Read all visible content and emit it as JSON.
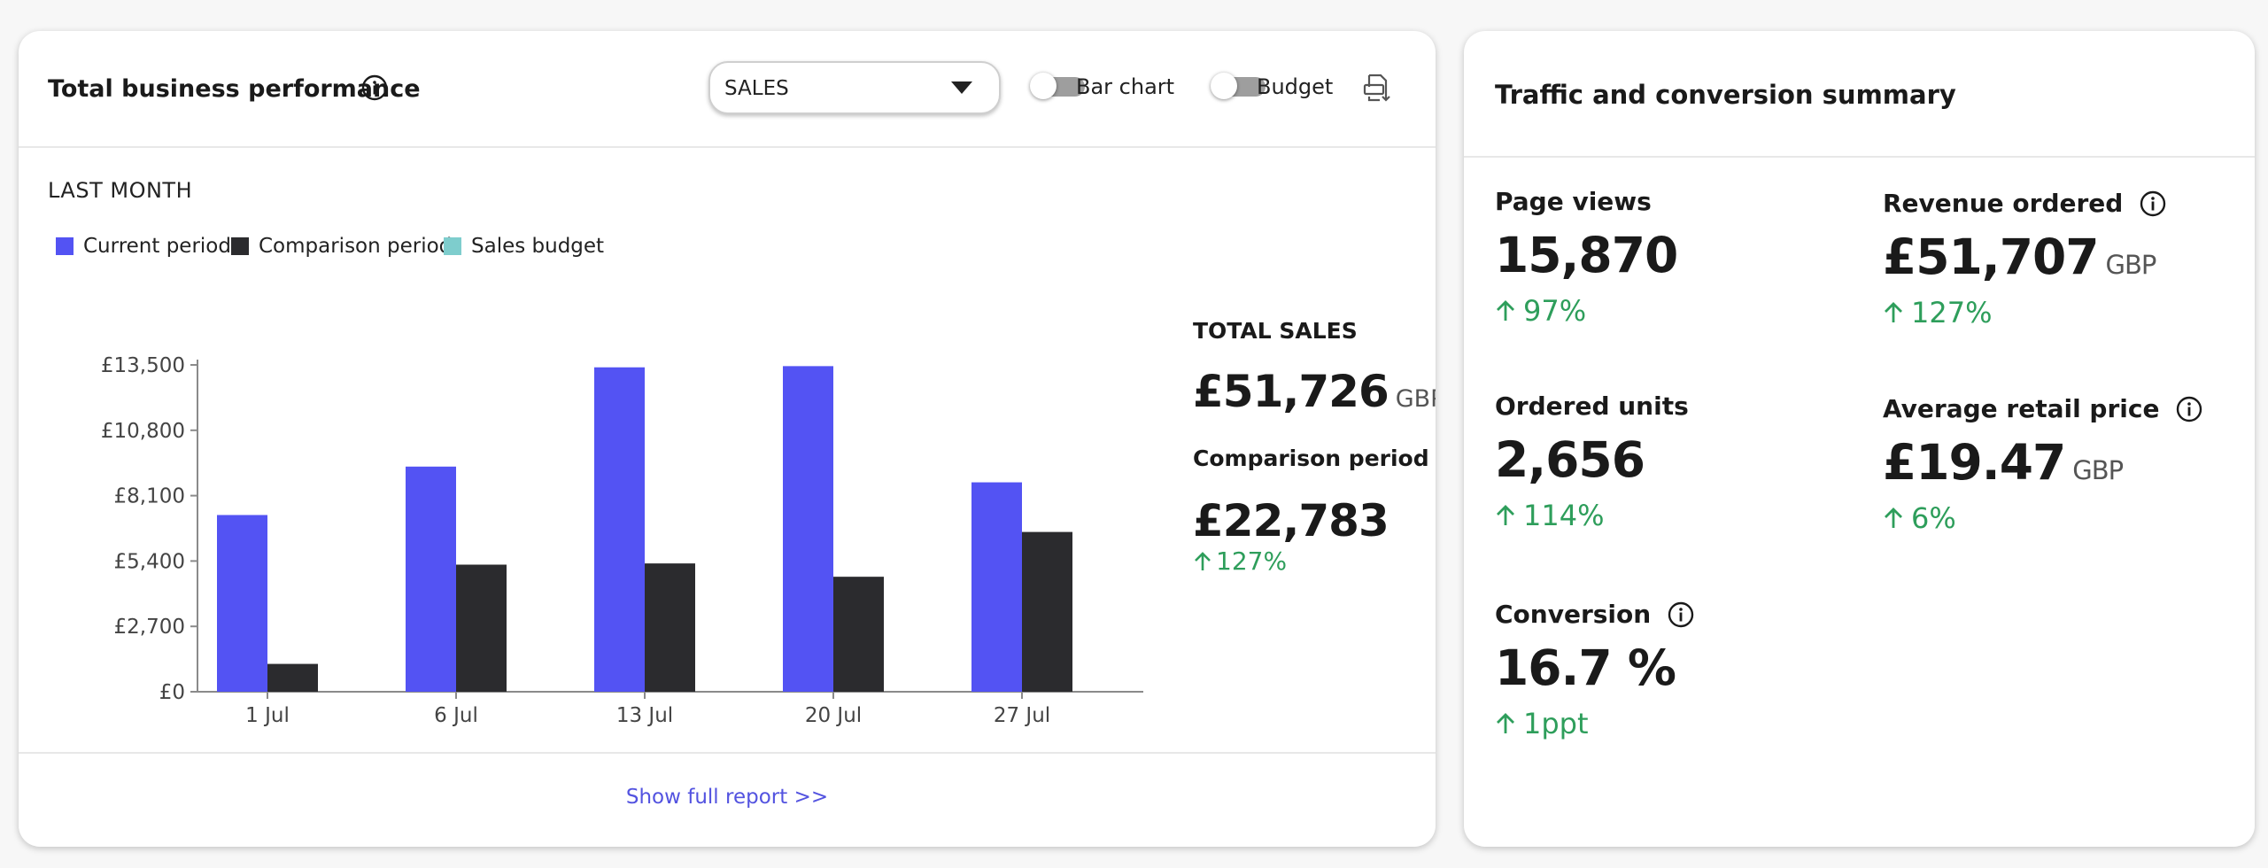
{
  "main_card": {
    "title": "Total business performance",
    "metric_select": {
      "value": "SALES"
    },
    "toggles": [
      {
        "label": "Bar chart",
        "on": false
      },
      {
        "label": "Budget",
        "on": false
      }
    ],
    "period_label": "LAST MONTH",
    "legend": [
      {
        "label": "Current period",
        "color": "#5353f3"
      },
      {
        "label": "Comparison period",
        "color": "#2b2b2e"
      },
      {
        "label": "Sales budget",
        "color": "#7ecdcd"
      }
    ],
    "summary": {
      "total_title": "TOTAL SALES",
      "total_value": "£51,726",
      "total_unit": "GBP",
      "comparison_title": "Comparison period",
      "comparison_value": "£22,783",
      "comparison_change": "127%"
    },
    "footer_link": "Show full report >>"
  },
  "chart_data": {
    "type": "bar",
    "categories": [
      "1 Jul",
      "6 Jul",
      "13 Jul",
      "20 Jul",
      "27 Jul"
    ],
    "series": [
      {
        "name": "Current period",
        "color": "#5353f3",
        "values": [
          7300,
          9300,
          13400,
          13450,
          8650
        ]
      },
      {
        "name": "Comparison period",
        "color": "#2b2b2e",
        "values": [
          1150,
          5250,
          5300,
          4750,
          6600
        ]
      }
    ],
    "y_ticks": [
      "£0",
      "£2,700",
      "£5,400",
      "£8,100",
      "£10,800",
      "£13,500"
    ],
    "y_tick_values": [
      0,
      2700,
      5400,
      8100,
      10800,
      13500
    ],
    "ylim": [
      0,
      13500
    ],
    "grid": false,
    "legend_position": "top-left"
  },
  "traffic_card": {
    "title": "Traffic and conversion summary",
    "metrics": [
      {
        "title": "Page views",
        "value": "15,870",
        "unit": "",
        "change": "97%",
        "info": false
      },
      {
        "title": "Revenue ordered",
        "value": "£51,707",
        "unit": "GBP",
        "change": "127%",
        "info": true
      },
      {
        "title": "Ordered units",
        "value": "2,656",
        "unit": "",
        "change": "114%",
        "info": false
      },
      {
        "title": "Average retail price",
        "value": "£19.47",
        "unit": "GBP",
        "change": "6%",
        "info": true
      },
      {
        "title": "Conversion",
        "value": "16.7 %",
        "unit": "",
        "change": "1ppt",
        "info": true
      }
    ]
  },
  "colors": {
    "positive": "#2e9e5b",
    "link": "#5353e0"
  },
  "icons": [
    "info-icon",
    "chevron-down-icon",
    "download-report-icon",
    "arrow-up-icon"
  ]
}
